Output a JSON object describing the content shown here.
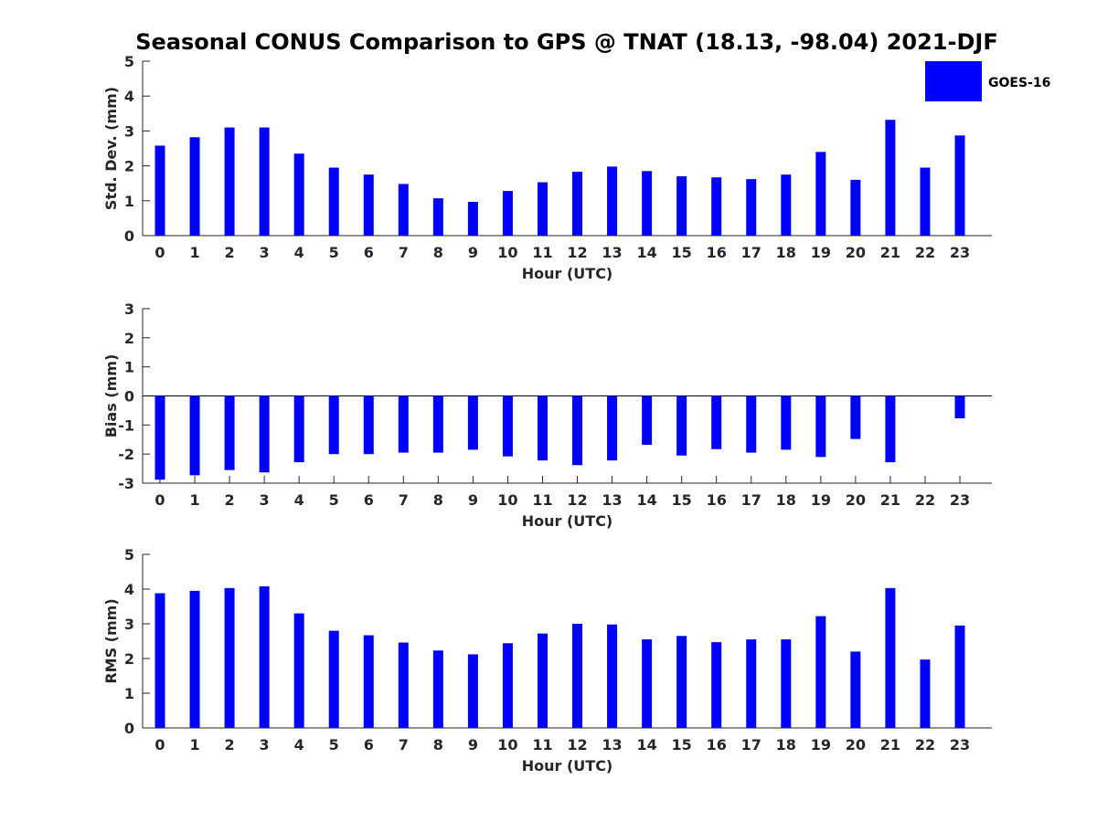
{
  "chart_data": {
    "title": "Seasonal CONUS Comparison to GPS @ TNAT (18.13, -98.04) 2021-DJF",
    "type": "bar",
    "bar_color": "#0000ff",
    "legend": {
      "entries": [
        "GOES-16"
      ],
      "placement": "top-right"
    },
    "categories": [
      "0",
      "1",
      "2",
      "3",
      "4",
      "5",
      "6",
      "7",
      "8",
      "9",
      "10",
      "11",
      "12",
      "13",
      "14",
      "15",
      "16",
      "17",
      "18",
      "19",
      "20",
      "21",
      "22",
      "23"
    ],
    "panels": [
      {
        "xlabel": "Hour (UTC)",
        "ylabel": "Std. Dev. (mm)",
        "ylim": [
          0,
          5
        ],
        "yticks": [
          "0",
          "1",
          "2",
          "3",
          "4",
          "5"
        ],
        "series": [
          {
            "name": "GOES-16",
            "values": [
              2.58,
              2.82,
              3.1,
              3.1,
              2.35,
              1.95,
              1.75,
              1.48,
              1.07,
              0.97,
              1.28,
              1.53,
              1.83,
              1.98,
              1.85,
              1.7,
              1.67,
              1.62,
              1.75,
              2.4,
              1.6,
              3.32,
              1.95,
              2.87
            ]
          }
        ]
      },
      {
        "xlabel": "Hour (UTC)",
        "ylabel": "Bias (mm)",
        "ylim": [
          -3,
          3
        ],
        "yticks": [
          "-3",
          "-2",
          "-1",
          "0",
          "1",
          "2",
          "3"
        ],
        "zero_line": true,
        "series": [
          {
            "name": "GOES-16",
            "values": [
              -2.88,
              -2.73,
              -2.55,
              -2.63,
              -2.28,
              -2.0,
              -2.0,
              -1.95,
              -1.95,
              -1.85,
              -2.08,
              -2.22,
              -2.38,
              -2.22,
              -1.68,
              -2.05,
              -1.83,
              -1.95,
              -1.85,
              -2.1,
              -1.48,
              -2.28,
              0,
              -0.77
            ]
          }
        ]
      },
      {
        "xlabel": "Hour (UTC)",
        "ylabel": "RMS (mm)",
        "ylim": [
          0,
          5
        ],
        "yticks": [
          "0",
          "1",
          "2",
          "3",
          "4",
          "5"
        ],
        "series": [
          {
            "name": "GOES-16",
            "values": [
              3.88,
              3.95,
              4.03,
              4.08,
              3.3,
              2.8,
              2.67,
              2.46,
              2.23,
              2.12,
              2.44,
              2.72,
              3.0,
              2.98,
              2.55,
              2.65,
              2.47,
              2.55,
              2.55,
              3.22,
              2.2,
              4.03,
              1.97,
              2.95
            ]
          }
        ]
      }
    ]
  }
}
